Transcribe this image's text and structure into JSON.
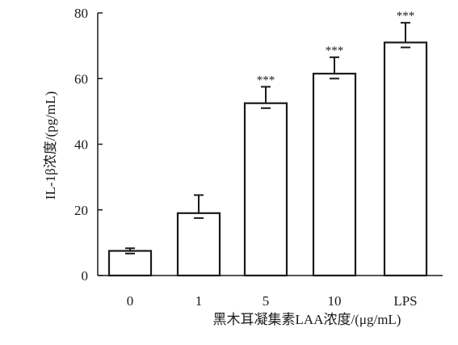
{
  "chart_data": {
    "type": "bar",
    "title": "",
    "xlabel": "黑木耳凝集素LAA浓度/(μg/mL)",
    "ylabel": "IL-1β浓度/(pg/mL)",
    "categories": [
      "0",
      "1",
      "5",
      "10",
      "LPS"
    ],
    "values": [
      7.5,
      19,
      52.5,
      61.5,
      71
    ],
    "errors": [
      0.8,
      5.5,
      5,
      5,
      6
    ],
    "significance": [
      "",
      "",
      "***",
      "***",
      "***"
    ],
    "ylim": [
      0,
      80
    ],
    "yticks": [
      0,
      20,
      40,
      60,
      80
    ],
    "grid": false,
    "legend": "none",
    "colors": {
      "bar_fill": "#ffffff",
      "stroke": "#1a1a1a"
    }
  }
}
